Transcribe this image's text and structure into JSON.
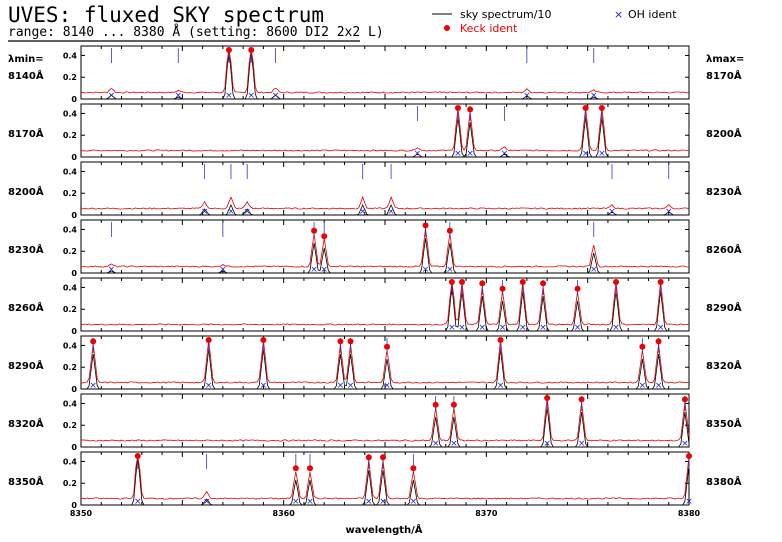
{
  "header": {
    "title": "UVES: fluxed SKY spectrum",
    "subtitle": "range: 8140 ... 8380 Å (setting: 8600 DI2 2x2 L)",
    "lambda_min_label": "λmin=",
    "lambda_max_label": "λmax="
  },
  "legend": {
    "sky_label": "sky spectrum/10",
    "oh_label": "OH ident",
    "keck_label": "Keck ident"
  },
  "colors": {
    "sky": "#000000",
    "red_trace": "#e00000",
    "oh": "#2222dd",
    "keck": "#ee0000",
    "ident_line": "#3333cc"
  },
  "chart_data": {
    "type": "line",
    "title": "UVES: fluxed SKY spectrum",
    "xlabel": "wavelength/Å",
    "x_tick_labels": [
      "8350",
      "8360",
      "8370",
      "8380"
    ],
    "y_tick_labels": [
      "0",
      "0.2",
      "0.4"
    ],
    "ylim": [
      0,
      0.45
    ],
    "panel_width_angstrom": 30,
    "panels": [
      {
        "min": "8140Å",
        "max": "8170Å",
        "lines": [
          {
            "x": 7.3,
            "h": 0.5,
            "keck": 1,
            "oh": 1
          },
          {
            "x": 8.4,
            "h": 0.5,
            "keck": 1,
            "oh": 1
          },
          {
            "x": 1.5,
            "h": 0.04,
            "oh": 1
          },
          {
            "x": 4.8,
            "h": 0.02,
            "oh": 1
          },
          {
            "x": 9.6,
            "h": 0.04,
            "oh": 1
          },
          {
            "x": 22.0,
            "h": 0.03,
            "oh": 1
          },
          {
            "x": 25.3,
            "h": 0.02,
            "oh": 1
          }
        ]
      },
      {
        "min": "8170Å",
        "max": "8200Å",
        "lines": [
          {
            "x": 18.6,
            "h": 0.4,
            "keck": 1,
            "oh": 1
          },
          {
            "x": 19.2,
            "h": 0.35,
            "keck": 1,
            "oh": 1
          },
          {
            "x": 24.9,
            "h": 0.4,
            "keck": 1,
            "oh": 1
          },
          {
            "x": 25.7,
            "h": 0.4,
            "keck": 1,
            "oh": 1
          },
          {
            "x": 16.6,
            "h": 0.03,
            "oh": 1
          },
          {
            "x": 20.9,
            "h": 0.03,
            "oh": 1
          }
        ]
      },
      {
        "min": "8200Å",
        "max": "8230Å",
        "lines": [
          {
            "x": 6.1,
            "h": 0.06,
            "oh": 1
          },
          {
            "x": 7.4,
            "h": 0.1,
            "oh": 1
          },
          {
            "x": 8.2,
            "h": 0.06,
            "oh": 1
          },
          {
            "x": 13.9,
            "h": 0.1,
            "oh": 1
          },
          {
            "x": 15.3,
            "h": 0.1,
            "oh": 1
          },
          {
            "x": 26.2,
            "h": 0.03,
            "oh": 1
          },
          {
            "x": 29.0,
            "h": 0.03,
            "oh": 1
          }
        ]
      },
      {
        "min": "8230Å",
        "max": "8260Å",
        "lines": [
          {
            "x": 11.5,
            "h": 0.3,
            "keck": 1,
            "oh": 1
          },
          {
            "x": 12.0,
            "h": 0.25,
            "keck": 1,
            "oh": 1
          },
          {
            "x": 17.0,
            "h": 0.35,
            "keck": 1,
            "oh": 1
          },
          {
            "x": 18.2,
            "h": 0.3,
            "keck": 1,
            "oh": 1
          },
          {
            "x": 25.3,
            "h": 0.2,
            "oh": 1
          },
          {
            "x": 1.5,
            "h": 0.02,
            "oh": 1
          },
          {
            "x": 7.0,
            "h": 0.02,
            "oh": 1
          }
        ]
      },
      {
        "min": "8260Å",
        "max": "8290Å",
        "lines": [
          {
            "x": 18.3,
            "h": 0.45,
            "keck": 1,
            "oh": 1
          },
          {
            "x": 18.8,
            "h": 0.4,
            "keck": 1,
            "oh": 1
          },
          {
            "x": 19.8,
            "h": 0.35,
            "keck": 1,
            "oh": 1
          },
          {
            "x": 20.8,
            "h": 0.3,
            "keck": 1,
            "oh": 1
          },
          {
            "x": 21.8,
            "h": 0.4,
            "keck": 1,
            "oh": 1
          },
          {
            "x": 22.8,
            "h": 0.35,
            "keck": 1,
            "oh": 1
          },
          {
            "x": 24.5,
            "h": 0.3,
            "keck": 1,
            "oh": 1
          },
          {
            "x": 26.4,
            "h": 0.4,
            "keck": 1,
            "oh": 1
          },
          {
            "x": 28.6,
            "h": 0.4,
            "keck": 1,
            "oh": 1
          }
        ]
      },
      {
        "min": "8290Å",
        "max": "8320Å",
        "lines": [
          {
            "x": 0.6,
            "h": 0.35,
            "keck": 1,
            "oh": 1
          },
          {
            "x": 6.3,
            "h": 0.4,
            "keck": 1,
            "oh": 1
          },
          {
            "x": 9.0,
            "h": 0.4,
            "keck": 1,
            "oh": 1
          },
          {
            "x": 12.8,
            "h": 0.35,
            "keck": 1,
            "oh": 1
          },
          {
            "x": 13.3,
            "h": 0.35,
            "keck": 1,
            "oh": 1
          },
          {
            "x": 15.1,
            "h": 0.3,
            "keck": 1,
            "oh": 1
          },
          {
            "x": 20.7,
            "h": 0.4,
            "keck": 1,
            "oh": 1
          },
          {
            "x": 27.7,
            "h": 0.3,
            "keck": 1,
            "oh": 1
          },
          {
            "x": 28.5,
            "h": 0.35,
            "keck": 1,
            "oh": 1
          }
        ]
      },
      {
        "min": "8320Å",
        "max": "8350Å",
        "lines": [
          {
            "x": 17.5,
            "h": 0.3,
            "keck": 1,
            "oh": 1
          },
          {
            "x": 18.4,
            "h": 0.3,
            "keck": 1,
            "oh": 1
          },
          {
            "x": 23.0,
            "h": 0.4,
            "keck": 1,
            "oh": 1
          },
          {
            "x": 24.7,
            "h": 0.35,
            "keck": 1,
            "oh": 1
          },
          {
            "x": 29.8,
            "h": 0.35,
            "keck": 1,
            "oh": 1
          }
        ]
      },
      {
        "min": "8350Å",
        "max": "8380Å",
        "lines": [
          {
            "x": 2.8,
            "h": 0.5,
            "keck": 1,
            "oh": 1
          },
          {
            "x": 6.2,
            "h": 0.06,
            "oh": 1
          },
          {
            "x": 10.6,
            "h": 0.25,
            "keck": 1,
            "oh": 1
          },
          {
            "x": 11.3,
            "h": 0.25,
            "keck": 1,
            "oh": 1
          },
          {
            "x": 14.2,
            "h": 0.35,
            "keck": 1,
            "oh": 1
          },
          {
            "x": 14.9,
            "h": 0.35,
            "keck": 1,
            "oh": 1
          },
          {
            "x": 16.4,
            "h": 0.25,
            "keck": 1,
            "oh": 1
          },
          {
            "x": 30.0,
            "h": 0.4,
            "keck": 1,
            "oh": 1
          }
        ]
      }
    ]
  }
}
